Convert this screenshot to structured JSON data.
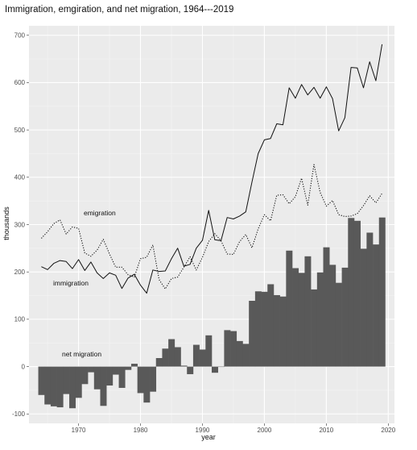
{
  "chart_data": {
    "type": "line",
    "title": "Immigration, emgiration, and net migration, 1964---2019",
    "xlabel": "year",
    "ylabel": "thousands",
    "xlim": [
      1962,
      2021
    ],
    "ylim": [
      -120,
      720
    ],
    "x_ticks": [
      1970,
      1980,
      1990,
      2000,
      2010,
      2020
    ],
    "y_ticks": [
      -100,
      0,
      100,
      200,
      300,
      400,
      500,
      600,
      700
    ],
    "grid": true,
    "legend": "none",
    "x": [
      1964,
      1965,
      1966,
      1967,
      1968,
      1969,
      1970,
      1971,
      1972,
      1973,
      1974,
      1975,
      1976,
      1977,
      1978,
      1979,
      1980,
      1981,
      1982,
      1983,
      1984,
      1985,
      1986,
      1987,
      1988,
      1989,
      1990,
      1991,
      1992,
      1993,
      1994,
      1995,
      1996,
      1997,
      1998,
      1999,
      2000,
      2001,
      2002,
      2003,
      2004,
      2005,
      2006,
      2007,
      2008,
      2009,
      2010,
      2011,
      2012,
      2013,
      2014,
      2015,
      2016,
      2017,
      2018,
      2019
    ],
    "series": [
      {
        "name": "immigration",
        "style": "solid-line",
        "values": [
          211,
          205,
          218,
          224,
          222,
          207,
          226,
          203,
          221,
          198,
          186,
          198,
          193,
          165,
          187,
          195,
          172,
          155,
          204,
          201,
          202,
          228,
          250,
          212,
          216,
          250,
          267,
          330,
          268,
          266,
          315,
          312,
          318,
          327,
          390,
          450,
          479,
          482,
          513,
          511,
          589,
          567,
          596,
          574,
          590,
          567,
          591,
          566,
          498,
          526,
          632,
          631,
          589,
          644,
          604,
          681
        ]
      },
      {
        "name": "emigration",
        "style": "dotted-line",
        "values": [
          271,
          285,
          302,
          310,
          280,
          295,
          292,
          240,
          233,
          246,
          269,
          238,
          210,
          210,
          194,
          189,
          228,
          231,
          257,
          184,
          164,
          186,
          189,
          210,
          232,
          204,
          231,
          264,
          281,
          266,
          238,
          237,
          264,
          279,
          251,
          291,
          321,
          308,
          362,
          363,
          344,
          359,
          398,
          341,
          427,
          368,
          339,
          351,
          321,
          317,
          318,
          323,
          340,
          361,
          346,
          366
        ]
      },
      {
        "name": "net migration",
        "style": "bars",
        "values": [
          -60,
          -80,
          -84,
          -86,
          -58,
          -88,
          -66,
          -37,
          -12,
          -48,
          -83,
          -40,
          -17,
          -45,
          -7,
          6,
          -56,
          -76,
          -53,
          18,
          38,
          58,
          41,
          2,
          -16,
          46,
          36,
          66,
          -13,
          0,
          77,
          75,
          54,
          48,
          139,
          159,
          158,
          174,
          151,
          148,
          245,
          208,
          198,
          233,
          163,
          199,
          252,
          215,
          177,
          209,
          314,
          308,
          249,
          283,
          258,
          315
        ]
      }
    ]
  },
  "annotations": {
    "emigration": "emigration",
    "immigration": "immigration",
    "net_migration": "net migration"
  }
}
